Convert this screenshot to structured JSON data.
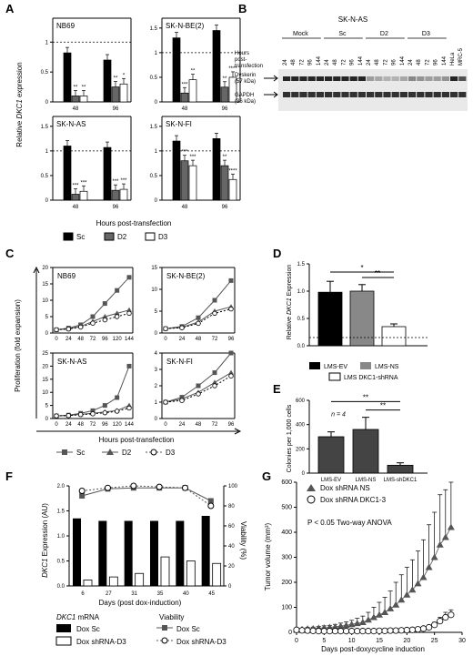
{
  "panels": {
    "A": {
      "letter": "A",
      "ylabel_pre": "Relative ",
      "ylabel_gene": "DKC1",
      "ylabel_post": " expression",
      "xlabel": "Hours post-transfection",
      "legend": [
        "Sc",
        "D2",
        "D3"
      ],
      "subcharts": [
        {
          "title": "NB69",
          "yticks": [
            "0",
            "0.5",
            "1"
          ],
          "ylim": [
            0,
            1.4
          ],
          "categories": [
            "48",
            "96"
          ],
          "series": [
            {
              "name": "Sc",
              "values": [
                0.82,
                0.7
              ]
            },
            {
              "name": "D2",
              "values": [
                0.1,
                0.25
              ]
            },
            {
              "name": "D3",
              "values": [
                0.1,
                0.3
              ]
            }
          ],
          "sig": [
            [
              "",
              "**",
              "**"
            ],
            [
              "",
              "**",
              "*"
            ]
          ]
        },
        {
          "title": "SK-N-BE(2)",
          "yticks": [
            "0",
            "0.5",
            "1",
            "1.5"
          ],
          "ylim": [
            0,
            1.7
          ],
          "categories": [
            "48",
            "96"
          ],
          "series": [
            {
              "name": "Sc",
              "values": [
                1.3,
                1.45
              ]
            },
            {
              "name": "D2",
              "values": [
                0.18,
                0.3
              ]
            },
            {
              "name": "D3",
              "values": [
                0.45,
                0.5
              ]
            }
          ],
          "sig": [
            [
              "",
              "***",
              "**"
            ],
            [
              "",
              "**",
              "****"
            ]
          ]
        },
        {
          "title": "SK-N-AS",
          "yticks": [
            "0",
            "0.5",
            "1",
            "1.5"
          ],
          "ylim": [
            0,
            1.7
          ],
          "categories": [
            "48",
            "96"
          ],
          "series": [
            {
              "name": "Sc",
              "values": [
                1.1,
                1.07
              ]
            },
            {
              "name": "D2",
              "values": [
                0.12,
                0.2
              ]
            },
            {
              "name": "D3",
              "values": [
                0.18,
                0.22
              ]
            }
          ],
          "sig": [
            [
              "",
              "***",
              "***"
            ],
            [
              "",
              "***",
              "***"
            ]
          ]
        },
        {
          "title": "SK-N-FI",
          "yticks": [
            "0",
            "0.5",
            "1",
            "1.5"
          ],
          "ylim": [
            0,
            1.7
          ],
          "categories": [
            "48",
            "96"
          ],
          "series": [
            {
              "name": "Sc",
              "values": [
                1.2,
                1.25
              ]
            },
            {
              "name": "D2",
              "values": [
                0.8,
                0.7
              ]
            },
            {
              "name": "D3",
              "values": [
                0.7,
                0.42
              ]
            }
          ],
          "sig": [
            [
              "",
              "***",
              "***"
            ],
            [
              "",
              "**",
              "****"
            ]
          ]
        }
      ]
    },
    "B": {
      "letter": "B",
      "title": "SK-N-AS",
      "groups": [
        "Mock",
        "Sc",
        "D2",
        "D3"
      ],
      "lane_labels": [
        "24",
        "48",
        "72",
        "96",
        "144",
        "24",
        "48",
        "72",
        "96",
        "144",
        "24",
        "48",
        "72",
        "96",
        "144",
        "24",
        "48",
        "72",
        "96",
        "144",
        "HeLa",
        "MRC-5"
      ],
      "hours_label_lines": [
        "Hours",
        "post-",
        "transfection"
      ],
      "band1_label": [
        "Dyskerin",
        "(57 kDa)"
      ],
      "band2_label": [
        "GAPDH",
        "(36 kDa)"
      ]
    },
    "C": {
      "letter": "C",
      "ylabel": "Proliferation (fold expansion)",
      "xlabel": "Hours post-transfection",
      "legend": [
        "Sc",
        "D2",
        "D3"
      ],
      "subcharts": [
        {
          "title": "NB69",
          "yticks": [
            "0",
            "5",
            "10",
            "15",
            "20"
          ],
          "ylim": [
            0,
            20
          ],
          "x": [
            "0",
            "24",
            "48",
            "72",
            "96",
            "120",
            "144"
          ],
          "series": [
            {
              "name": "Sc",
              "values": [
                1,
                1.5,
                2.5,
                5,
                9,
                13,
                17
              ]
            },
            {
              "name": "D2",
              "values": [
                1,
                1.3,
                2,
                3.5,
                5,
                6,
                7
              ]
            },
            {
              "name": "D3",
              "values": [
                1,
                1.2,
                1.8,
                3,
                4,
                5,
                6
              ]
            }
          ]
        },
        {
          "title": "SK-N-BE(2)",
          "yticks": [
            "0",
            "5",
            "10",
            "15"
          ],
          "ylim": [
            0,
            15
          ],
          "x": [
            "0",
            "24",
            "48",
            "72",
            "96"
          ],
          "series": [
            {
              "name": "Sc",
              "values": [
                1,
                1.5,
                3.5,
                7.5,
                12
              ]
            },
            {
              "name": "D2",
              "values": [
                1,
                1.3,
                2.5,
                5,
                6
              ]
            },
            {
              "name": "D3",
              "values": [
                1,
                1.2,
                2.2,
                4.5,
                5.5
              ]
            }
          ]
        },
        {
          "title": "SK-N-AS",
          "yticks": [
            "0",
            "5",
            "10",
            "15",
            "20",
            "25"
          ],
          "ylim": [
            0,
            25
          ],
          "x": [
            "0",
            "24",
            "48",
            "72",
            "96",
            "120",
            "144"
          ],
          "series": [
            {
              "name": "Sc",
              "values": [
                1,
                1.3,
                2,
                3,
                5,
                8,
                20
              ]
            },
            {
              "name": "D2",
              "values": [
                1,
                1.2,
                1.6,
                2,
                2.5,
                3,
                5
              ]
            },
            {
              "name": "D3",
              "values": [
                1,
                1.1,
                1.5,
                1.8,
                2.2,
                2.8,
                4
              ]
            }
          ]
        },
        {
          "title": "SK-N-FI",
          "yticks": [
            "0",
            "1",
            "2",
            "3",
            "4"
          ],
          "ylim": [
            0,
            4
          ],
          "x": [
            "0",
            "24",
            "48",
            "72",
            "96"
          ],
          "series": [
            {
              "name": "Sc",
              "values": [
                1,
                1.3,
                2,
                2.8,
                4
              ]
            },
            {
              "name": "D2",
              "values": [
                1,
                1.2,
                1.6,
                2.2,
                2.8
              ]
            },
            {
              "name": "D3",
              "values": [
                1,
                1.1,
                1.5,
                2,
                2.6
              ]
            }
          ]
        }
      ]
    },
    "D": {
      "letter": "D",
      "ylabel_pre": "Relative ",
      "ylabel_gene": "DKC1",
      "ylabel_post": " Expression",
      "yticks": [
        "0.0",
        "0.5",
        "1.0",
        "1.5"
      ],
      "ylim": [
        0,
        1.5
      ],
      "values": [
        0.98,
        1.0,
        0.35
      ],
      "errors": [
        0.2,
        0.12,
        0.05
      ],
      "sig": [
        "*",
        "**"
      ],
      "legend": [
        "LMS-EV",
        "LMS-NS",
        "LMS DKC1-shRNA"
      ]
    },
    "E": {
      "letter": "E",
      "ylabel": "Colonies per 1,000 cells",
      "yticks": [
        "0",
        "200",
        "400",
        "600"
      ],
      "ylim": [
        0,
        600
      ],
      "n_label": "n = 4",
      "categories": [
        "LMS-EV",
        "LMS-NS",
        "LMS-shDKC1"
      ],
      "values": [
        300,
        360,
        65
      ],
      "errors": [
        40,
        100,
        20
      ],
      "sig": [
        "**",
        "**"
      ]
    },
    "F": {
      "letter": "F",
      "ylabel_gene": "DKC1",
      "ylabel_post": " Expression (AU)",
      "y2label": "Viability (%)",
      "yticks": [
        "0.0",
        "0.5",
        "1.0",
        "1.5",
        "2.0"
      ],
      "ylim": [
        0,
        2.0
      ],
      "y2ticks": [
        "0",
        "20",
        "40",
        "60",
        "80",
        "100"
      ],
      "xlabel": "Days (post dox-induction)",
      "categories": [
        "6",
        "27",
        "31",
        "35",
        "40",
        "45"
      ],
      "series": [
        {
          "name": "Dox Sc",
          "values": [
            1.35,
            1.3,
            1.3,
            1.3,
            1.3,
            1.4
          ]
        },
        {
          "name": "Dox shRNA-D3",
          "values": [
            0.12,
            0.18,
            0.25,
            0.58,
            0.5,
            0.45
          ]
        }
      ],
      "viability": [
        {
          "name": "Dox Sc",
          "values": [
            90,
            97,
            98,
            98,
            98,
            85
          ]
        },
        {
          "name": "Dox shRNA-D3",
          "values": [
            95,
            98,
            100,
            99,
            98,
            80
          ]
        }
      ],
      "legend_title_gene": "DKC1",
      "legend_title_post": " mRNA",
      "legend_title2": "Viability",
      "legend": [
        "Dox Sc",
        "Dox shRNA-D3",
        "Dox Sc",
        "Dox shRNA-D3"
      ]
    },
    "G": {
      "letter": "G",
      "ylabel": "Tumor volume (mm³)",
      "xlabel": "Days post-doxycycline induction",
      "yticks": [
        "0",
        "100",
        "200",
        "300",
        "400",
        "500",
        "600"
      ],
      "ylim": [
        0,
        600
      ],
      "xticks": [
        "0",
        "5",
        "10",
        "15",
        "20",
        "25",
        "30"
      ],
      "xlim": [
        0,
        30
      ],
      "annotation": "P < 0.05 Two-way ANOVA",
      "series": [
        {
          "name": "Dox shRNA NS",
          "x": [
            0,
            1,
            2,
            3,
            4,
            5,
            6,
            7,
            8,
            9,
            10,
            11,
            12,
            13,
            14,
            15,
            16,
            17,
            18,
            19,
            20,
            21,
            22,
            23,
            24,
            25,
            26,
            27,
            28
          ],
          "values": [
            10,
            12,
            14,
            15,
            17,
            18,
            20,
            22,
            25,
            28,
            32,
            36,
            40,
            50,
            60,
            70,
            80,
            95,
            110,
            130,
            150,
            170,
            195,
            220,
            260,
            300,
            350,
            380,
            420
          ],
          "errors": [
            5,
            5,
            6,
            6,
            7,
            8,
            8,
            10,
            12,
            14,
            16,
            20,
            25,
            30,
            40,
            50,
            60,
            70,
            90,
            100,
            110,
            120,
            130,
            150,
            170,
            180,
            200,
            190,
            180
          ]
        },
        {
          "name": "Dox shRNA DKC1-3",
          "x": [
            0,
            1,
            2,
            3,
            4,
            5,
            6,
            7,
            8,
            9,
            10,
            11,
            12,
            13,
            14,
            15,
            16,
            17,
            18,
            19,
            20,
            21,
            22,
            23,
            24,
            25,
            26,
            27,
            28
          ],
          "values": [
            10,
            8,
            7,
            6,
            5,
            5,
            5,
            5,
            5,
            5,
            5,
            5,
            5,
            5,
            5,
            6,
            6,
            7,
            7,
            8,
            9,
            10,
            12,
            15,
            20,
            30,
            45,
            60,
            70
          ],
          "errors": [
            3,
            3,
            3,
            2,
            2,
            2,
            2,
            2,
            2,
            2,
            2,
            2,
            2,
            2,
            2,
            2,
            2,
            3,
            3,
            3,
            3,
            4,
            4,
            5,
            6,
            10,
            15,
            20,
            20
          ]
        }
      ]
    }
  }
}
